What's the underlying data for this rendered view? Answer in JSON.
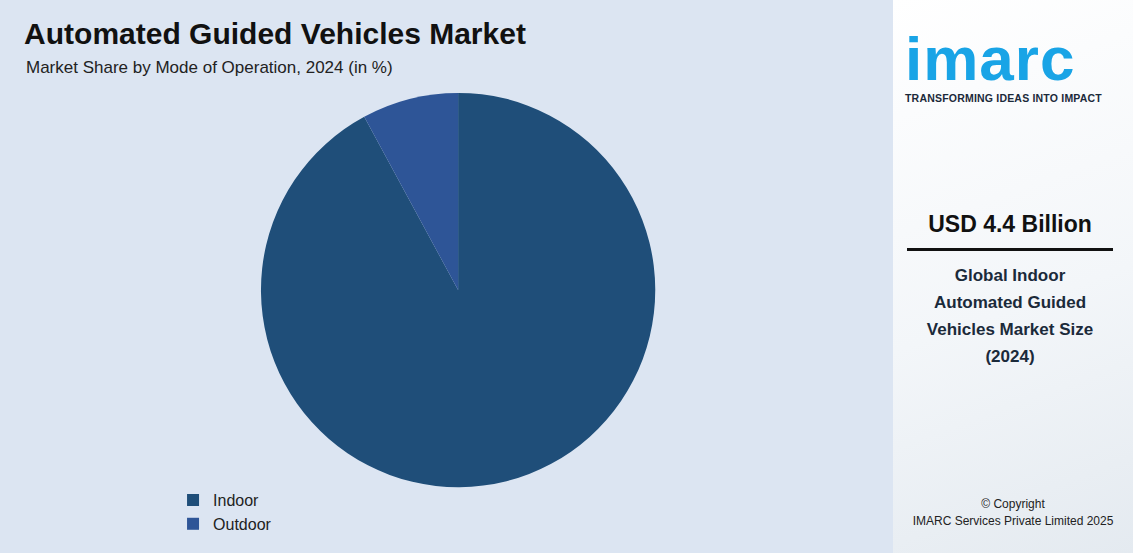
{
  "chart_data": {
    "type": "pie",
    "title": "Automated Guided Vehicles Market",
    "subtitle": "Market Share by Mode of Operation, 2024 (in %)",
    "categories": [
      "Indoor",
      "Outdoor"
    ],
    "values": [
      92.1,
      7.9
    ],
    "colors": [
      "#1f4e79",
      "#2e5597"
    ],
    "data_labels": false,
    "legend": "bottom"
  },
  "panel": {
    "logo": "imarc",
    "tagline": "TRANSFORMING IDEAS INTO IMPACT",
    "value": "USD 4.4 Billion",
    "description": [
      "Global Indoor",
      "Automated Guided",
      "Vehicles Market Size",
      "(2024)"
    ],
    "copyright": [
      "© Copyright",
      "IMARC Services Private Limited 2025"
    ]
  }
}
